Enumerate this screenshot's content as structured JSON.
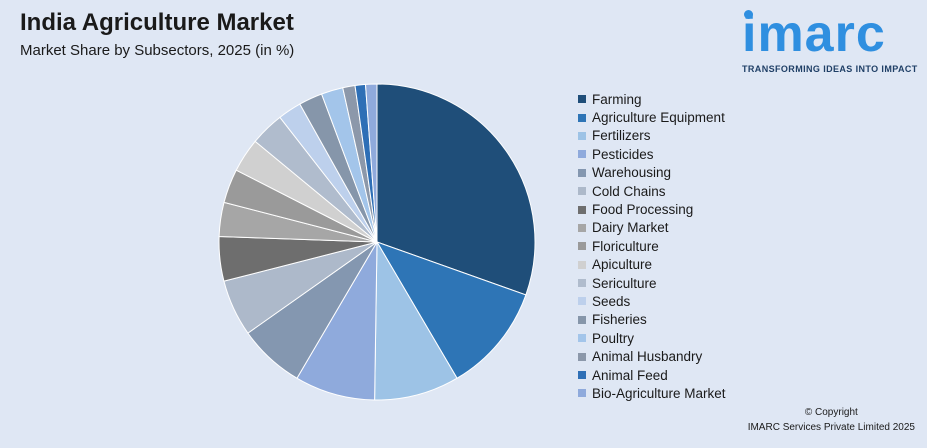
{
  "header": {
    "title": "India Agriculture Market",
    "subtitle": "Market Share by Subsectors, 2025 (in %)"
  },
  "logo": {
    "word": "imarc",
    "tagline": "TRANSFORMING IDEAS INTO IMPACT"
  },
  "footer": {
    "copyright_line1": "© Copyright",
    "copyright_line2": "IMARC Services Private Limited 2025"
  },
  "chart_data": {
    "type": "pie",
    "title": "India Agriculture Market",
    "subtitle": "Market Share by Subsectors, 2025 (in %)",
    "legend_position": "right",
    "start_angle_deg": 0,
    "direction": "clockwise",
    "categories": [
      "Farming",
      "Agriculture Equipment",
      "Fertilizers",
      "Pesticides",
      "Warehousing",
      "Cold Chains",
      "Food Processing",
      "Dairy Market",
      "Floriculture",
      "Apiculture",
      "Sericulture",
      "Seeds",
      "Fisheries",
      "Poultry",
      "Animal Husbandry",
      "Animal Feed",
      "Bio-Agriculture Market"
    ],
    "values": [
      31.5,
      11.5,
      9.0,
      8.5,
      7.0,
      6.0,
      4.7,
      3.6,
      3.6,
      3.6,
      3.6,
      2.5,
      2.5,
      2.3,
      1.3,
      1.1,
      1.2
    ],
    "colors": [
      "#1f4e79",
      "#2e75b6",
      "#9dc3e6",
      "#8faadc",
      "#8497b0",
      "#adb9ca",
      "#6e6e6e",
      "#a6a6a6",
      "#9a9a9a",
      "#d0d0d0",
      "#b0bccd",
      "#bdd0ec",
      "#8696aa",
      "#a3c5ea",
      "#8c98aa",
      "#2e6fb6",
      "#8faadc"
    ]
  }
}
